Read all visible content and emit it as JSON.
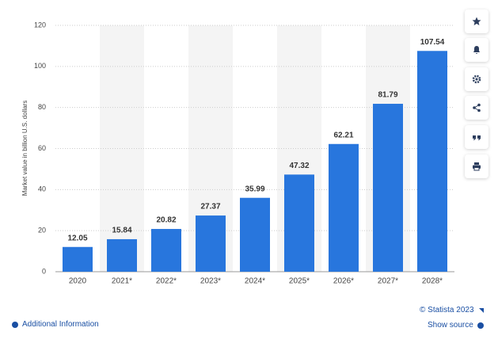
{
  "chart_data": {
    "type": "bar",
    "y_axis_label": "Market value in billion U.S. dollars",
    "categories": [
      "2020",
      "2021*",
      "2022*",
      "2023*",
      "2024*",
      "2025*",
      "2026*",
      "2027*",
      "2028*"
    ],
    "values": [
      12.05,
      15.84,
      20.82,
      27.37,
      35.99,
      47.32,
      62.21,
      81.79,
      107.54
    ],
    "color": "#2876dd",
    "ylim": [
      0,
      120
    ],
    "yticks": [
      0,
      20,
      40,
      60,
      80,
      100,
      120
    ],
    "grid": true
  },
  "footer": {
    "copyright": "© Statista 2023",
    "show_source": "Show source",
    "additional_information": "Additional Information"
  }
}
